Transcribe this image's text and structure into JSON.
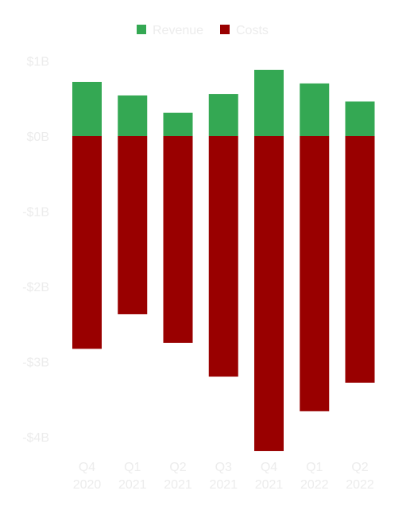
{
  "chart_data": {
    "type": "bar",
    "stacked": true,
    "categories": [
      "Q4 2020",
      "Q1 2021",
      "Q2 2021",
      "Q3 2021",
      "Q4 2021",
      "Q1 2022",
      "Q2 2022"
    ],
    "category_lines": [
      [
        "Q4",
        "2020"
      ],
      [
        "Q1",
        "2021"
      ],
      [
        "Q2",
        "2021"
      ],
      [
        "Q3",
        "2021"
      ],
      [
        "Q4",
        "2021"
      ],
      [
        "Q1",
        "2022"
      ],
      [
        "Q2",
        "2022"
      ]
    ],
    "series": [
      {
        "name": "Revenue",
        "color": "#34a853",
        "values": [
          0.72,
          0.54,
          0.31,
          0.56,
          0.88,
          0.7,
          0.46
        ]
      },
      {
        "name": "Costs",
        "color": "#990000",
        "values": [
          -2.83,
          -2.37,
          -2.75,
          -3.2,
          -4.19,
          -3.66,
          -3.28
        ]
      }
    ],
    "yticks": [
      1,
      0,
      -1,
      -2,
      -3,
      -4
    ],
    "ytick_labels": [
      "$1B",
      "$0B",
      "-$1B",
      "-$2B",
      "-$3B",
      "-$4B"
    ],
    "ylim": [
      -4.4,
      1.1
    ],
    "title": "",
    "xlabel": "",
    "ylabel": "",
    "grid": false,
    "legend": {
      "position": "top",
      "entries": [
        "Revenue",
        "Costs"
      ]
    }
  }
}
